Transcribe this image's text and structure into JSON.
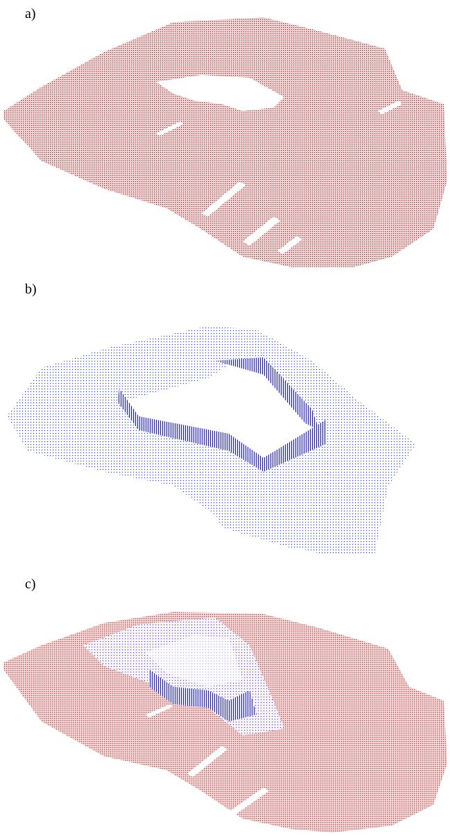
{
  "panels": [
    {
      "label": "a)"
    },
    {
      "label": "b)"
    },
    {
      "label": "c)"
    }
  ]
}
